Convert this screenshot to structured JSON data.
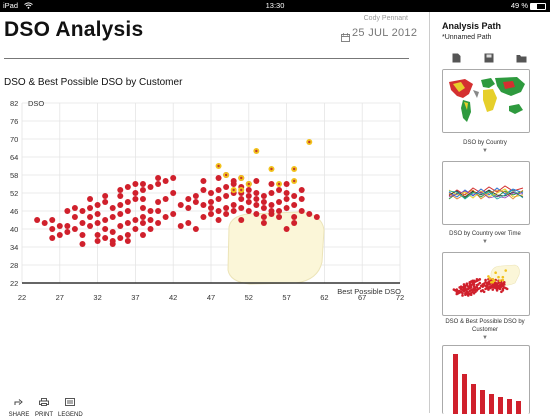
{
  "status_bar": {
    "device": "iPad",
    "time": "13:30",
    "battery": "49 %"
  },
  "header": {
    "title": "DSO Analysis",
    "user": "Cody Pennant",
    "date": "25 JUL 2012"
  },
  "chart_data": {
    "type": "scatter",
    "title": "DSO & Best Possible DSO by Customer",
    "xlabel": "Best Possible DSO",
    "ylabel": "DSO",
    "xlim": [
      22,
      72
    ],
    "ylim": [
      22,
      82
    ],
    "x_ticks": [
      "22",
      "27",
      "32",
      "37",
      "42",
      "47",
      "52",
      "57",
      "62",
      "67",
      "72"
    ],
    "y_ticks": [
      "82",
      "76",
      "70",
      "64",
      "58",
      "52",
      "46",
      "40",
      "34",
      "28",
      "22"
    ],
    "grid": true,
    "colors": {
      "main": "#d0202c",
      "highlight": "#f2c21c",
      "highlight_center": "#c0392b",
      "selection": "#fbf6d8"
    },
    "series": [
      {
        "values": [
          [
            31,
            41
          ],
          [
            32,
            42
          ],
          [
            33,
            43
          ],
          [
            34,
            44
          ],
          [
            35,
            45
          ],
          [
            36,
            46
          ],
          [
            33,
            40
          ],
          [
            34,
            39
          ],
          [
            35,
            41
          ],
          [
            36,
            42
          ],
          [
            37,
            43
          ],
          [
            38,
            44
          ],
          [
            32,
            45
          ],
          [
            31,
            44
          ],
          [
            30,
            42
          ],
          [
            29,
            40
          ],
          [
            28,
            39
          ],
          [
            27,
            38
          ],
          [
            26,
            37
          ],
          [
            29,
            44
          ],
          [
            30,
            46
          ],
          [
            31,
            47
          ],
          [
            32,
            48
          ],
          [
            33,
            49
          ],
          [
            34,
            47
          ],
          [
            35,
            48
          ],
          [
            36,
            49
          ],
          [
            37,
            50
          ],
          [
            38,
            47
          ],
          [
            39,
            46
          ],
          [
            38,
            42
          ],
          [
            37,
            40
          ],
          [
            36,
            38
          ],
          [
            35,
            37
          ],
          [
            34,
            36
          ],
          [
            33,
            37
          ],
          [
            32,
            38
          ],
          [
            30,
            38
          ],
          [
            28,
            41
          ],
          [
            27,
            41
          ],
          [
            26,
            43
          ],
          [
            25,
            42
          ],
          [
            24,
            43
          ],
          [
            28,
            46
          ],
          [
            29,
            47
          ],
          [
            31,
            50
          ],
          [
            33,
            51
          ],
          [
            35,
            51
          ],
          [
            37,
            52
          ],
          [
            38,
            50
          ],
          [
            40,
            49
          ],
          [
            40,
            46
          ],
          [
            39,
            43
          ],
          [
            40,
            42
          ],
          [
            41,
            44
          ],
          [
            42,
            45
          ],
          [
            39,
            40
          ],
          [
            38,
            38
          ],
          [
            36,
            36
          ],
          [
            34,
            35
          ],
          [
            38,
            53
          ],
          [
            39,
            54
          ],
          [
            40,
            55
          ],
          [
            41,
            56
          ],
          [
            42,
            57
          ],
          [
            40,
            57
          ],
          [
            38,
            55
          ],
          [
            37,
            55
          ],
          [
            42,
            52
          ],
          [
            41,
            50
          ],
          [
            43,
            48
          ],
          [
            44,
            47
          ],
          [
            44,
            42
          ],
          [
            45,
            40
          ],
          [
            43,
            41
          ],
          [
            35,
            53
          ],
          [
            36,
            54
          ],
          [
            30,
            35
          ],
          [
            32,
            36
          ],
          [
            26,
            40
          ],
          [
            46,
            48
          ],
          [
            47,
            49
          ],
          [
            48,
            50
          ],
          [
            49,
            51
          ],
          [
            50,
            52
          ],
          [
            51,
            50
          ],
          [
            52,
            49
          ],
          [
            53,
            48
          ],
          [
            54,
            47
          ],
          [
            55,
            48
          ],
          [
            56,
            49
          ],
          [
            57,
            50
          ],
          [
            48,
            46
          ],
          [
            49,
            45
          ],
          [
            50,
            46
          ],
          [
            51,
            47
          ],
          [
            52,
            46
          ],
          [
            53,
            45
          ],
          [
            54,
            44
          ],
          [
            55,
            45
          ],
          [
            56,
            46
          ],
          [
            57,
            47
          ],
          [
            58,
            48
          ],
          [
            47,
            52
          ],
          [
            48,
            53
          ],
          [
            49,
            54
          ],
          [
            50,
            55
          ],
          [
            51,
            54
          ],
          [
            52,
            53
          ],
          [
            53,
            52
          ],
          [
            54,
            51
          ],
          [
            55,
            52
          ],
          [
            56,
            53
          ],
          [
            57,
            52
          ],
          [
            58,
            51
          ],
          [
            59,
            50
          ],
          [
            47,
            45
          ],
          [
            46,
            44
          ],
          [
            49,
            47
          ],
          [
            50,
            48
          ],
          [
            51,
            52
          ],
          [
            52,
            51
          ],
          [
            53,
            50
          ],
          [
            54,
            49
          ],
          [
            55,
            46
          ],
          [
            56,
            44
          ],
          [
            58,
            44
          ],
          [
            59,
            46
          ],
          [
            50,
            56
          ],
          [
            48,
            57
          ],
          [
            49,
            58
          ],
          [
            52,
            55
          ],
          [
            46,
            53
          ],
          [
            45,
            51
          ],
          [
            44,
            50
          ],
          [
            45,
            49
          ],
          [
            60,
            45
          ],
          [
            61,
            44
          ],
          [
            58,
            42
          ],
          [
            57,
            40
          ],
          [
            54,
            42
          ],
          [
            51,
            43
          ],
          [
            48,
            43
          ],
          [
            47,
            47
          ],
          [
            55,
            55
          ],
          [
            53,
            56
          ],
          [
            51,
            57
          ],
          [
            46,
            56
          ],
          [
            57,
            55
          ],
          [
            59,
            53
          ]
        ]
      },
      {
        "values": [
          [
            48,
            61
          ],
          [
            49,
            58
          ],
          [
            50,
            53
          ],
          [
            51,
            57
          ],
          [
            51,
            53
          ],
          [
            52,
            55
          ],
          [
            53,
            66
          ],
          [
            55,
            60
          ],
          [
            56,
            55
          ],
          [
            58,
            56
          ],
          [
            58,
            60
          ],
          [
            60,
            69
          ]
        ]
      }
    ]
  },
  "toolbar": [
    {
      "label": "SHARE",
      "icon": "share-icon"
    },
    {
      "label": "PRINT",
      "icon": "print-icon"
    },
    {
      "label": "LEGEND",
      "icon": "legend-icon"
    }
  ],
  "analysis_path": {
    "title": "Analysis Path",
    "subtitle": "*Unnamed Path",
    "toolbar_icons": [
      "new-path-icon",
      "save-icon",
      "folder-icon"
    ],
    "steps": [
      {
        "label": "DSO by Country"
      },
      {
        "label": "DSO by Country over Time"
      },
      {
        "label": "DSO & Best Possible DSO by Customer"
      },
      {
        "label": ""
      }
    ]
  }
}
